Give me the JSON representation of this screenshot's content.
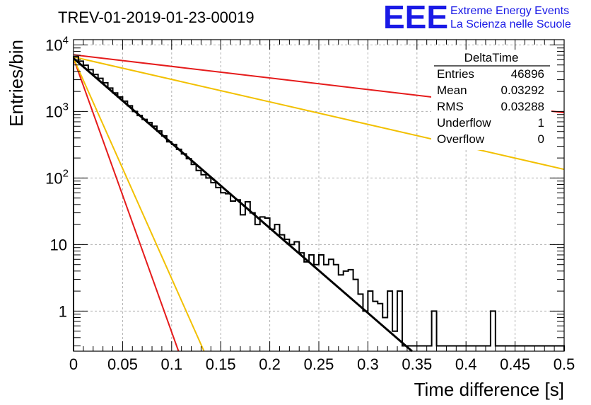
{
  "header": {
    "title": "TREV-01-2019-01-23-00019",
    "logo_mark": "EEE",
    "logo_line1": "Extreme Energy Events",
    "logo_line2": "La Scienza nelle Scuole"
  },
  "stats": {
    "name": "DeltaTime",
    "rows": [
      {
        "label": "Entries",
        "value": "46896"
      },
      {
        "label": "Mean",
        "value": "0.03292"
      },
      {
        "label": "RMS",
        "value": "0.03288"
      },
      {
        "label": "Underflow",
        "value": "1"
      },
      {
        "label": "Overflow",
        "value": "0"
      }
    ]
  },
  "chart_data": {
    "type": "histogram",
    "xlabel": "Time difference [s]",
    "ylabel": "Entries/bin",
    "xlim": [
      0,
      0.5
    ],
    "ylim": [
      0.25,
      12000
    ],
    "y_scale": "log",
    "grid": true,
    "x_ticks": [
      "0",
      "0.05",
      "0.1",
      "0.15",
      "0.2",
      "0.25",
      "0.3",
      "0.35",
      "0.4",
      "0.45",
      "0.5"
    ],
    "y_ticks": [
      {
        "value": 1,
        "label": "1"
      },
      {
        "value": 10,
        "label": "10"
      },
      {
        "value": 100,
        "label": "10",
        "sup": "2"
      },
      {
        "value": 1000,
        "label": "10",
        "sup": "3"
      },
      {
        "value": 10000,
        "label": "10",
        "sup": "4"
      }
    ],
    "bin_width": 0.005,
    "histogram": {
      "name": "DeltaTime",
      "color": "#000000",
      "counts": [
        6650,
        5700,
        4950,
        4250,
        3600,
        3150,
        2700,
        2250,
        1900,
        1650,
        1430,
        1220,
        1000,
        870,
        760,
        680,
        600,
        510,
        430,
        350,
        320,
        270,
        230,
        195,
        160,
        130,
        112,
        100,
        85,
        72,
        60,
        58,
        45,
        47,
        28,
        44,
        30,
        20,
        26,
        25,
        17,
        20,
        14,
        12,
        10,
        11,
        7.5,
        5.5,
        7,
        5,
        7,
        5,
        6,
        5,
        3.5,
        4,
        4.2,
        3,
        1.8,
        1,
        2,
        1.4,
        1.3,
        0.8,
        2,
        0.5,
        2,
        0.3,
        0.3,
        0.3,
        0.3,
        0.3,
        0.3,
        1,
        0.3,
        0.3,
        0.3,
        0.3,
        0.3,
        0.3,
        0.3,
        0.3,
        0.3,
        0.3,
        0.3,
        1,
        0.3,
        0.3,
        0.3,
        0.3,
        0.3,
        0.3,
        0.3,
        0.3,
        0.3,
        0.3,
        0.3,
        0.3,
        0.3,
        0.3
      ]
    },
    "fits": [
      {
        "name": "black-fit",
        "color": "#000000",
        "x": [
          0,
          0.345
        ],
        "y": [
          6300,
          0.25
        ]
      },
      {
        "name": "red-fast-fit",
        "color": "#e51b1b",
        "x": [
          0,
          0.107
        ],
        "y": [
          6300,
          0.25
        ]
      },
      {
        "name": "orange-fast-fit",
        "color": "#f2c000",
        "x": [
          0,
          0.133
        ],
        "y": [
          6300,
          0.25
        ]
      },
      {
        "name": "red-slow-fit",
        "color": "#e51b1b",
        "x": [
          0,
          0.5
        ],
        "y": [
          7100,
          960
        ]
      },
      {
        "name": "orange-slow-fit",
        "color": "#f2c000",
        "x": [
          0,
          0.5
        ],
        "y": [
          6600,
          135
        ]
      }
    ]
  }
}
